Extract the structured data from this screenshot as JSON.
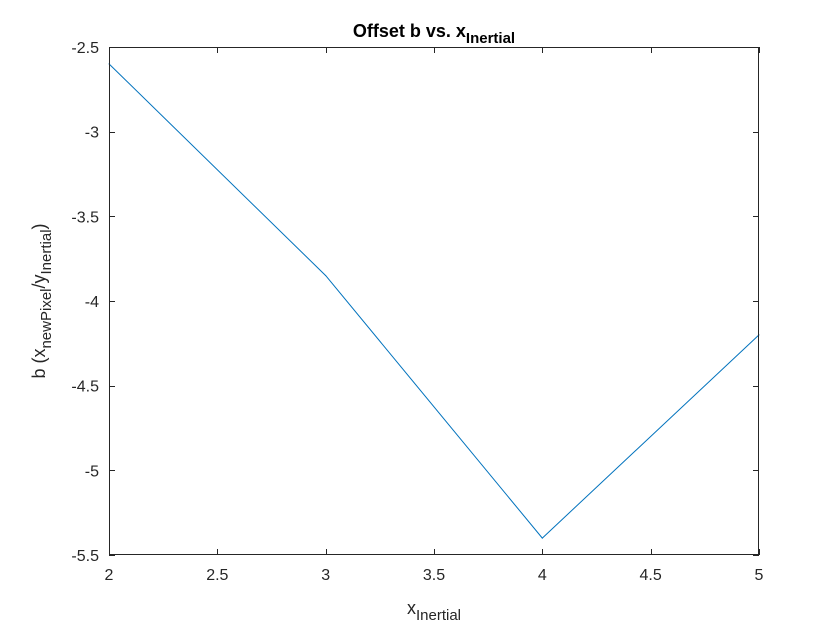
{
  "chart_data": {
    "type": "line",
    "title": "Offset b vs. x",
    "title_sub": "Inertial",
    "xlabel": "x",
    "xlabel_sub": "Inertial",
    "ylabel_parts": {
      "prefix": "b (x",
      "sub1": "newPixel",
      "mid": "/y",
      "sub2": "Inertial",
      "suffix": ")"
    },
    "xlim": [
      2,
      5
    ],
    "ylim": [
      -5.5,
      -2.5
    ],
    "xticks": [
      2,
      2.5,
      3,
      3.5,
      4,
      4.5,
      5
    ],
    "xtick_labels": [
      "2",
      "2.5",
      "3",
      "3.5",
      "4",
      "4.5",
      "5"
    ],
    "yticks": [
      -2.5,
      -3,
      -3.5,
      -4,
      -4.5,
      -5,
      -5.5
    ],
    "ytick_labels": [
      "-2.5",
      "-3",
      "-3.5",
      "-4",
      "-4.5",
      "-5",
      "-5.5"
    ],
    "grid": false,
    "series": [
      {
        "x": [
          2,
          3,
          4,
          5
        ],
        "y": [
          -2.6,
          -3.85,
          -5.4,
          -4.2
        ],
        "color": "#0072BD"
      }
    ]
  }
}
